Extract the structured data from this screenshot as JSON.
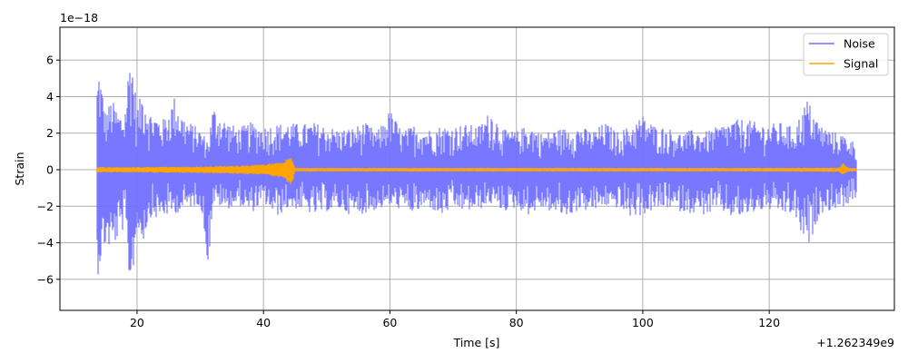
{
  "chart_data": {
    "type": "line",
    "title": "",
    "xlabel": "Time [s]",
    "ylabel": "Strain",
    "x_offset_label": "+1.262349e9",
    "y_scale_label": "1e−18",
    "xlim": [
      7.8,
      139.8
    ],
    "ylim": [
      -7.7,
      7.8
    ],
    "x_ticks": [
      20,
      40,
      60,
      80,
      100,
      120
    ],
    "x_tick_labels": [
      "20",
      "40",
      "60",
      "80",
      "100",
      "120"
    ],
    "y_ticks": [
      -6,
      -4,
      -2,
      0,
      2,
      4,
      6
    ],
    "y_tick_labels": [
      "−6",
      "−4",
      "−2",
      "0",
      "2",
      "4",
      "6"
    ],
    "grid": true,
    "legend_position": "top-right",
    "series": [
      {
        "name": "Noise",
        "color": "#7070ff",
        "x_range": [
          13.7,
          133.7
        ],
        "envelope_points": [
          [
            13.7,
            4.8,
            -6.0
          ],
          [
            14.0,
            5.7,
            -5.4
          ],
          [
            15.0,
            3.2,
            -4.2
          ],
          [
            16.0,
            3.9,
            -4.4
          ],
          [
            17.0,
            3.2,
            -3.8
          ],
          [
            18.0,
            3.0,
            -3.2
          ],
          [
            19.0,
            7.0,
            -6.9
          ],
          [
            20.0,
            3.4,
            -3.3
          ],
          [
            21.0,
            4.5,
            -3.9
          ],
          [
            22.0,
            3.2,
            -2.6
          ],
          [
            23.0,
            3.0,
            -2.7
          ],
          [
            24.0,
            2.7,
            -2.6
          ],
          [
            25.0,
            3.3,
            -2.5
          ],
          [
            26.0,
            4.1,
            -2.4
          ],
          [
            27.0,
            3.1,
            -2.3
          ],
          [
            28.0,
            2.7,
            -2.1
          ],
          [
            30.0,
            2.2,
            -1.9
          ],
          [
            31.3,
            1.6,
            -5.4
          ],
          [
            32.0,
            3.5,
            -1.8
          ],
          [
            34.0,
            2.7,
            -2.2
          ],
          [
            36.0,
            2.3,
            -1.9
          ],
          [
            38.0,
            2.6,
            -2.4
          ],
          [
            40.0,
            2.4,
            -1.8
          ],
          [
            42.0,
            2.5,
            -2.6
          ],
          [
            44.0,
            2.6,
            -2.1
          ],
          [
            46.0,
            2.5,
            -2.2
          ],
          [
            48.0,
            2.6,
            -2.5
          ],
          [
            50.0,
            2.4,
            -2.3
          ],
          [
            52.0,
            2.2,
            -2.2
          ],
          [
            54.0,
            2.3,
            -2.5
          ],
          [
            56.0,
            2.6,
            -2.4
          ],
          [
            58.0,
            2.1,
            -2.2
          ],
          [
            60.0,
            3.3,
            -2.0
          ],
          [
            62.0,
            2.1,
            -2.2
          ],
          [
            64.0,
            2.5,
            -2.4
          ],
          [
            66.0,
            2.2,
            -2.0
          ],
          [
            68.0,
            2.4,
            -2.6
          ],
          [
            70.0,
            2.4,
            -2.1
          ],
          [
            72.0,
            2.5,
            -2.3
          ],
          [
            74.0,
            2.4,
            -2.2
          ],
          [
            76.0,
            3.3,
            -1.9
          ],
          [
            78.0,
            2.2,
            -2.3
          ],
          [
            80.0,
            2.1,
            -2.1
          ],
          [
            82.0,
            2.5,
            -2.5
          ],
          [
            84.0,
            2.0,
            -2.1
          ],
          [
            86.0,
            2.2,
            -2.4
          ],
          [
            88.0,
            2.3,
            -2.6
          ],
          [
            90.0,
            2.4,
            -2.2
          ],
          [
            92.0,
            2.1,
            -2.3
          ],
          [
            94.0,
            2.6,
            -2.0
          ],
          [
            96.0,
            2.1,
            -2.1
          ],
          [
            98.0,
            2.4,
            -2.6
          ],
          [
            100.0,
            3.0,
            -2.5
          ],
          [
            102.0,
            2.4,
            -2.2
          ],
          [
            104.0,
            2.3,
            -2.1
          ],
          [
            106.0,
            2.0,
            -2.3
          ],
          [
            108.0,
            2.2,
            -2.4
          ],
          [
            110.0,
            2.1,
            -2.5
          ],
          [
            112.0,
            2.4,
            -2.2
          ],
          [
            114.0,
            2.7,
            -2.6
          ],
          [
            116.0,
            2.8,
            -2.6
          ],
          [
            118.0,
            2.6,
            -2.3
          ],
          [
            120.0,
            2.5,
            -2.2
          ],
          [
            122.0,
            2.6,
            -2.4
          ],
          [
            124.0,
            2.3,
            -2.5
          ],
          [
            126.0,
            3.9,
            -4.5
          ],
          [
            128.0,
            2.5,
            -2.4
          ],
          [
            130.0,
            2.1,
            -2.2
          ],
          [
            132.0,
            1.9,
            -2.0
          ],
          [
            133.7,
            1.5,
            -1.6
          ]
        ]
      },
      {
        "name": "Signal",
        "color": "#ffa500",
        "x_range": [
          13.7,
          133.7
        ],
        "envelope_points": [
          [
            13.7,
            0.15,
            -0.15
          ],
          [
            20.0,
            0.15,
            -0.15
          ],
          [
            30.0,
            0.18,
            -0.18
          ],
          [
            35.0,
            0.22,
            -0.22
          ],
          [
            40.0,
            0.3,
            -0.3
          ],
          [
            43.0,
            0.45,
            -0.45
          ],
          [
            44.5,
            0.7,
            -0.9
          ],
          [
            45.0,
            0.1,
            -0.1
          ],
          [
            60.0,
            0.1,
            -0.1
          ],
          [
            80.0,
            0.1,
            -0.1
          ],
          [
            100.0,
            0.1,
            -0.1
          ],
          [
            120.0,
            0.1,
            -0.1
          ],
          [
            131.0,
            0.12,
            -0.12
          ],
          [
            131.7,
            0.4,
            -0.3
          ],
          [
            132.5,
            0.1,
            -0.1
          ],
          [
            133.7,
            0.1,
            -0.1
          ]
        ]
      }
    ]
  }
}
